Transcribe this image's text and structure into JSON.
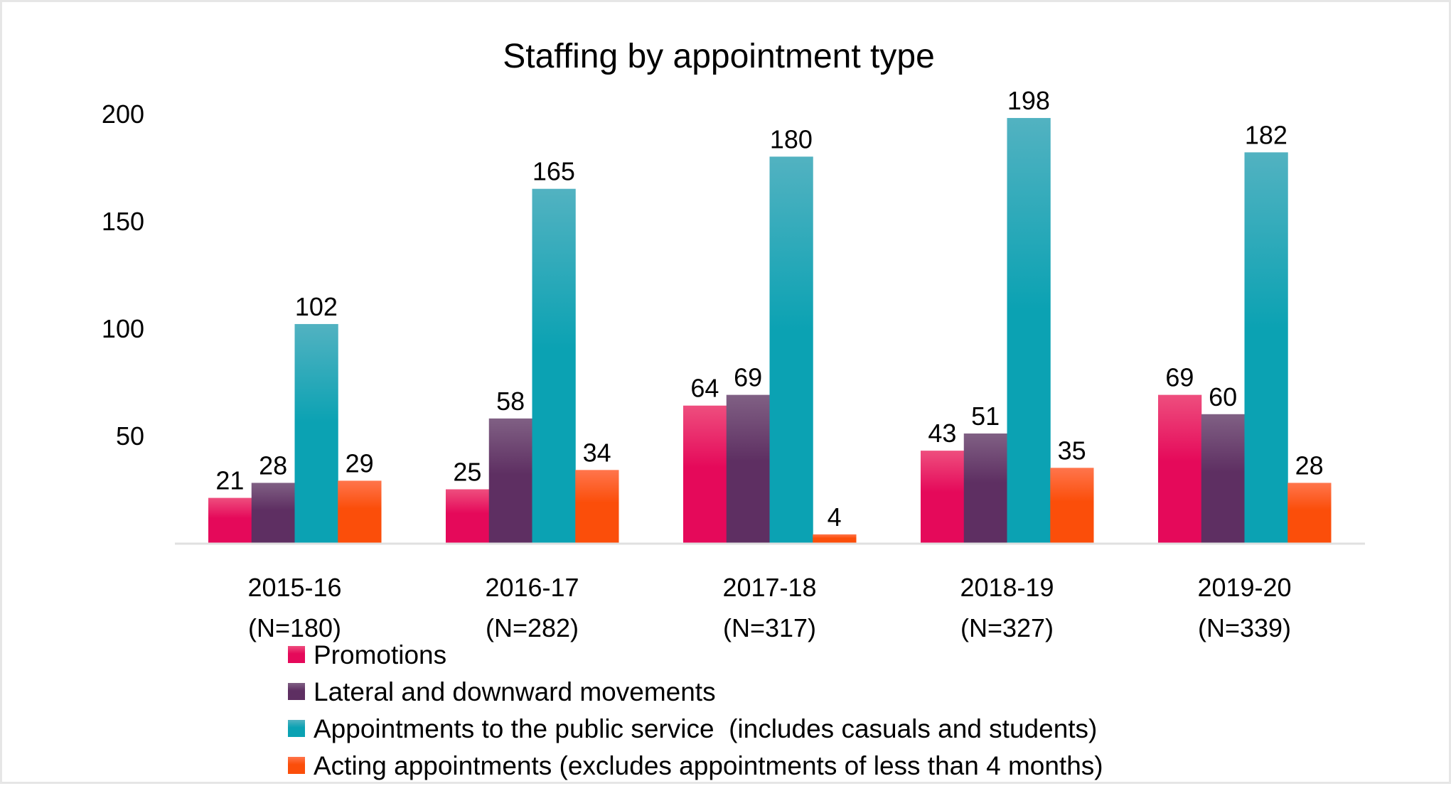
{
  "chart_data": {
    "type": "bar",
    "title": "Staffing by appointment type",
    "xlabel": "",
    "ylabel": "",
    "ylim": [
      0,
      200
    ],
    "yticks": [
      50,
      100,
      150,
      200
    ],
    "grid": false,
    "legend_position": "bottom-left",
    "categories": [
      [
        "2015-16",
        "(N=180)"
      ],
      [
        "2016-17",
        "(N=282)"
      ],
      [
        "2017-18",
        "(N=317)"
      ],
      [
        "2018-19",
        "(N=327)"
      ],
      [
        "2019-20",
        "(N=339)"
      ]
    ],
    "series": [
      {
        "name": "Promotions",
        "color": "#E5095A",
        "color_light": "#EE4E7E",
        "values": [
          21,
          25,
          64,
          43,
          69
        ]
      },
      {
        "name": "Lateral and downward movements",
        "color": "#5E2F62",
        "color_light": "#806084",
        "values": [
          28,
          58,
          69,
          51,
          60
        ]
      },
      {
        "name": "Appointments to the public service  (includes casuals and students)",
        "color": "#0BA2B3",
        "color_light": "#52B2C1",
        "values": [
          102,
          165,
          180,
          198,
          182
        ]
      },
      {
        "name": "Acting appointments (excludes appointments of less than 4 months)",
        "color": "#FB4E0A",
        "color_light": "#FF754C",
        "values": [
          29,
          34,
          4,
          35,
          28
        ]
      }
    ]
  }
}
